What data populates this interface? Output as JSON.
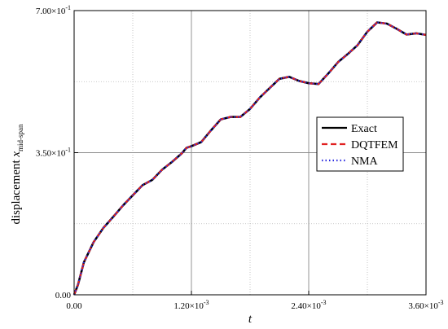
{
  "chart_data": {
    "type": "line",
    "xlabel": "t",
    "ylabel": {
      "main": "displacement ",
      "var": "x",
      "sub": "mid-span"
    },
    "xlim": [
      0,
      0.0036
    ],
    "ylim": [
      0,
      0.7
    ],
    "xticks": [
      {
        "value": 0,
        "label": "0.00"
      },
      {
        "value": 0.0012,
        "label": "1.20×10",
        "exp": "-3"
      },
      {
        "value": 0.0024,
        "label": "2.40×10",
        "exp": "-3"
      },
      {
        "value": 0.0036,
        "label": "3.60×10",
        "exp": "-3"
      }
    ],
    "yticks": [
      {
        "value": 0,
        "label": "0.00"
      },
      {
        "value": 0.35,
        "label": "3.50×10",
        "exp": "-1"
      },
      {
        "value": 0.7,
        "label": "7.00×10",
        "exp": "-1"
      }
    ],
    "major_grid_x": [
      0.0012,
      0.0024
    ],
    "major_grid_y": [
      0.35
    ],
    "minor_grid_x": [
      0.0006,
      0.0018,
      0.003
    ],
    "minor_grid_y": [
      0.175,
      0.525
    ],
    "grid": true,
    "legend_position": "right",
    "x": [
      0,
      4e-05,
      0.0001,
      0.0002,
      0.0003,
      0.0004,
      0.0005,
      0.0006,
      0.0007,
      0.0008,
      0.0009,
      0.001,
      0.0011,
      0.00115,
      0.0012,
      0.0013,
      0.0014,
      0.0015,
      0.0016,
      0.0017,
      0.0018,
      0.0019,
      0.002,
      0.0021,
      0.0022,
      0.0023,
      0.0024,
      0.0025,
      0.0026,
      0.0027,
      0.0028,
      0.0029,
      0.003,
      0.0031,
      0.0032,
      0.0033,
      0.0034,
      0.0035,
      0.0036
    ],
    "series": [
      {
        "name": "Exact",
        "color": "#000000",
        "dash": "solid",
        "values": [
          0,
          0.025,
          0.08,
          0.13,
          0.165,
          0.192,
          0.22,
          0.245,
          0.27,
          0.283,
          0.308,
          0.327,
          0.348,
          0.362,
          0.366,
          0.376,
          0.405,
          0.432,
          0.438,
          0.438,
          0.458,
          0.486,
          0.509,
          0.532,
          0.537,
          0.527,
          0.521,
          0.519,
          0.545,
          0.573,
          0.593,
          0.615,
          0.648,
          0.671,
          0.668,
          0.655,
          0.641,
          0.644,
          0.64
        ]
      },
      {
        "name": "DQTFEM",
        "color": "#e02020",
        "dash": "dashed",
        "values": [
          0,
          0.025,
          0.08,
          0.13,
          0.165,
          0.192,
          0.22,
          0.245,
          0.27,
          0.283,
          0.308,
          0.327,
          0.348,
          0.362,
          0.366,
          0.376,
          0.405,
          0.432,
          0.438,
          0.438,
          0.458,
          0.486,
          0.509,
          0.532,
          0.537,
          0.527,
          0.521,
          0.519,
          0.545,
          0.573,
          0.593,
          0.615,
          0.648,
          0.671,
          0.668,
          0.655,
          0.641,
          0.644,
          0.64
        ]
      },
      {
        "name": "NMA",
        "color": "#2a2ae0",
        "dash": "dotted",
        "values": [
          0,
          0.025,
          0.08,
          0.13,
          0.165,
          0.192,
          0.22,
          0.245,
          0.27,
          0.283,
          0.308,
          0.327,
          0.348,
          0.362,
          0.366,
          0.376,
          0.405,
          0.432,
          0.438,
          0.438,
          0.458,
          0.486,
          0.509,
          0.532,
          0.537,
          0.527,
          0.521,
          0.519,
          0.545,
          0.573,
          0.593,
          0.615,
          0.648,
          0.671,
          0.668,
          0.655,
          0.641,
          0.644,
          0.64
        ]
      }
    ]
  }
}
